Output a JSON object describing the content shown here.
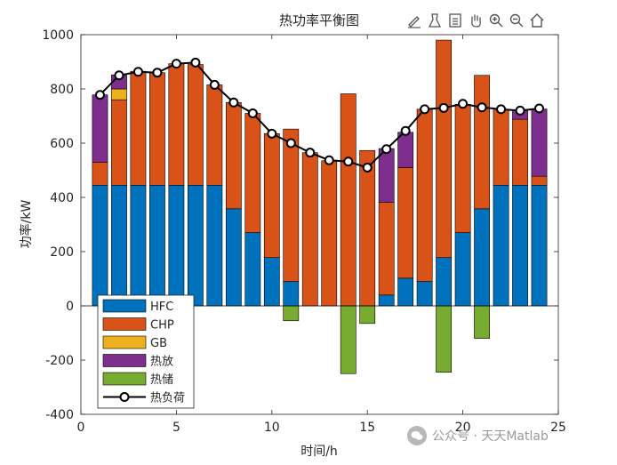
{
  "toolbar": {
    "icons": [
      "edit-plot-icon",
      "data-tips-icon",
      "brush-icon",
      "pan-icon",
      "zoom-in-icon",
      "zoom-out-icon",
      "home-icon"
    ]
  },
  "watermark": {
    "text": "公众号 · 天天Matlab"
  },
  "chart_data": {
    "type": "bar",
    "stacked": true,
    "title": "热功率平衡图",
    "xlabel": "时间/h",
    "ylabel": "功率/kW",
    "xlim": [
      0,
      25
    ],
    "ylim": [
      -400,
      1000
    ],
    "xticks": [
      0,
      5,
      10,
      15,
      20,
      25
    ],
    "yticks": [
      -400,
      -200,
      0,
      200,
      400,
      600,
      800,
      1000
    ],
    "legend_position": "bottom-left",
    "x": [
      1,
      2,
      3,
      4,
      5,
      6,
      7,
      8,
      9,
      10,
      11,
      12,
      13,
      14,
      15,
      16,
      17,
      18,
      19,
      20,
      21,
      22,
      23,
      24
    ],
    "series": [
      {
        "name": "HFC",
        "color": "#0072BD",
        "kind": "bar",
        "values": [
          445,
          445,
          445,
          445,
          445,
          445,
          445,
          358,
          270,
          178,
          90,
          0,
          0,
          0,
          0,
          40,
          102,
          90,
          178,
          270,
          358,
          445,
          445,
          445
        ]
      },
      {
        "name": "CHP",
        "color": "#D95319",
        "kind": "bar",
        "values": [
          85,
          315,
          420,
          415,
          448,
          445,
          370,
          392,
          440,
          457,
          562,
          565,
          535,
          782,
          573,
          342,
          408,
          635,
          802,
          473,
          492,
          280,
          243,
          33
        ]
      },
      {
        "name": "GB",
        "color": "#EDB120",
        "kind": "bar",
        "values": [
          0,
          40,
          0,
          0,
          0,
          0,
          0,
          0,
          0,
          0,
          0,
          0,
          0,
          0,
          0,
          0,
          0,
          0,
          0,
          0,
          0,
          0,
          0,
          0
        ]
      },
      {
        "name": "热放",
        "color": "#7E2F8E",
        "kind": "bar",
        "values": [
          248,
          52,
          0,
          0,
          0,
          0,
          0,
          0,
          0,
          0,
          0,
          0,
          0,
          0,
          0,
          198,
          130,
          0,
          0,
          0,
          0,
          0,
          35,
          248
        ]
      },
      {
        "name": "热储",
        "color": "#77AC30",
        "kind": "bar",
        "values": [
          0,
          0,
          0,
          0,
          0,
          0,
          0,
          0,
          0,
          0,
          -55,
          0,
          0,
          -250,
          -65,
          0,
          0,
          0,
          -245,
          0,
          -120,
          0,
          0,
          0
        ]
      },
      {
        "name": "热负荷",
        "color": "#000000",
        "kind": "line",
        "marker": "circle",
        "values": [
          778,
          850,
          863,
          860,
          893,
          897,
          815,
          750,
          710,
          635,
          600,
          565,
          537,
          532,
          510,
          578,
          645,
          725,
          730,
          745,
          732,
          725,
          720,
          728
        ]
      }
    ]
  }
}
